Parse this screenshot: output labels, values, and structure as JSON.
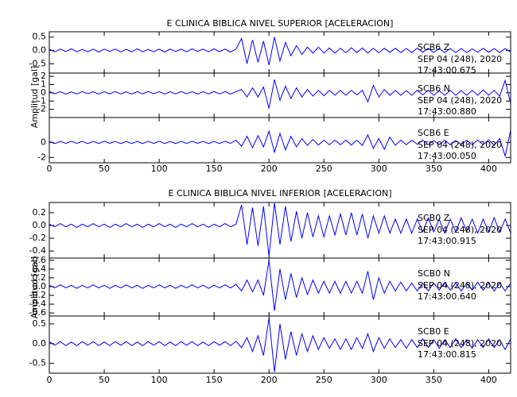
{
  "chart_data": [
    {
      "type": "line",
      "title": "E CLINICA BIBLICA NIVEL SUPERIOR [ACELERACION]",
      "y_label": "Amplitud [gal]",
      "color": "#0000ff",
      "xlim": [
        0,
        420
      ],
      "xticks": [
        0,
        50,
        100,
        150,
        200,
        250,
        300,
        350,
        400
      ],
      "x": [
        0,
        5,
        10,
        15,
        20,
        25,
        30,
        35,
        40,
        45,
        50,
        55,
        60,
        65,
        70,
        75,
        80,
        85,
        90,
        95,
        100,
        105,
        110,
        115,
        120,
        125,
        130,
        135,
        140,
        145,
        150,
        155,
        160,
        165,
        170,
        175,
        180,
        185,
        190,
        195,
        200,
        205,
        210,
        215,
        220,
        225,
        230,
        235,
        240,
        245,
        250,
        255,
        260,
        265,
        270,
        275,
        280,
        285,
        290,
        295,
        300,
        305,
        310,
        315,
        320,
        325,
        330,
        335,
        340,
        345,
        350,
        355,
        360,
        365,
        370,
        375,
        380,
        385,
        390,
        395,
        400,
        405,
        410,
        415,
        420
      ],
      "series": [
        {
          "name": "SCB6 Z",
          "date": "SEP 04 (248), 2020",
          "time": "17:43:00.675",
          "ylim": [
            -0.85,
            0.7
          ],
          "yticks": [
            0.5,
            {
              "value": 0,
              "label": "0.0"
            },
            -0.5
          ],
          "values": [
            0.04,
            -0.05,
            0.05,
            -0.04,
            0.06,
            -0.05,
            0.04,
            -0.05,
            0.05,
            -0.06,
            0.05,
            -0.04,
            0.05,
            -0.06,
            0.04,
            -0.05,
            0.06,
            -0.05,
            0.04,
            -0.05,
            0.05,
            -0.06,
            0.05,
            -0.04,
            0.05,
            -0.05,
            0.06,
            -0.04,
            0.05,
            -0.05,
            0.06,
            -0.05,
            0.05,
            -0.06,
            0.05,
            0.45,
            -0.5,
            0.4,
            -0.45,
            0.35,
            -0.55,
            0.5,
            -0.4,
            0.3,
            -0.2,
            0.18,
            -0.15,
            0.12,
            -0.1,
            0.12,
            -0.1,
            0.09,
            -0.1,
            0.08,
            -0.09,
            0.1,
            -0.08,
            0.09,
            -0.1,
            0.08,
            -0.09,
            0.08,
            -0.07,
            0.08,
            -0.08,
            0.07,
            -0.08,
            0.09,
            -0.07,
            0.08,
            -0.08,
            0.07,
            -0.08,
            0.07,
            -0.08,
            0.07,
            -0.08,
            0.06,
            -0.07,
            0.08,
            -0.07,
            0.07,
            -0.08,
            0.07,
            -0.06
          ]
        },
        {
          "name": "SCB6 N",
          "date": "SEP 04 (248), 2020",
          "time": "17:43:00.880",
          "ylim": [
            -3,
            2.4
          ],
          "yticks": [
            2,
            1,
            0,
            -1,
            -2
          ],
          "values": [
            0.15,
            -0.12,
            0.14,
            -0.15,
            0.12,
            -0.14,
            0.15,
            -0.12,
            0.13,
            -0.15,
            0.14,
            -0.13,
            0.15,
            -0.14,
            0.12,
            -0.15,
            0.14,
            -0.13,
            0.15,
            -0.12,
            0.14,
            -0.15,
            0.13,
            -0.14,
            0.15,
            -0.12,
            0.14,
            -0.15,
            0.13,
            -0.14,
            0.15,
            -0.13,
            0.14,
            -0.15,
            0.14,
            0.4,
            -0.5,
            0.6,
            -0.5,
            0.7,
            -1.9,
            1.6,
            -0.9,
            0.8,
            -0.7,
            0.6,
            -0.5,
            0.4,
            -0.4,
            0.3,
            -0.35,
            0.3,
            -0.3,
            0.3,
            -0.3,
            0.3,
            -0.25,
            0.3,
            -1.1,
            0.9,
            -0.5,
            0.4,
            -0.3,
            0.3,
            -0.3,
            0.25,
            -0.3,
            0.3,
            -0.25,
            0.3,
            -0.3,
            0.25,
            -0.3,
            0.3,
            -0.3,
            0.25,
            -0.3,
            0.3,
            -0.3,
            0.35,
            -0.3,
            0.3,
            -0.4,
            1.5,
            -1.3
          ]
        },
        {
          "name": "SCB6 E",
          "date": "SEP 04 (248), 2020",
          "time": "17:43:00.050",
          "ylim": [
            -2.7,
            3.3
          ],
          "yticks": [
            0,
            -2
          ],
          "values": [
            0.12,
            -0.15,
            0.14,
            -0.13,
            0.15,
            -0.12,
            0.14,
            -0.15,
            0.13,
            -0.14,
            0.15,
            -0.12,
            0.14,
            -0.15,
            0.13,
            -0.14,
            0.12,
            -0.15,
            0.14,
            -0.13,
            0.15,
            -0.14,
            0.12,
            -0.15,
            0.14,
            -0.13,
            0.15,
            -0.12,
            0.14,
            -0.15,
            0.13,
            -0.14,
            0.15,
            -0.12,
            0.3,
            -0.5,
            0.8,
            -0.7,
            0.9,
            -0.6,
            1.5,
            -1.3,
            1.2,
            -1.0,
            0.8,
            -0.6,
            0.5,
            -0.4,
            0.4,
            -0.35,
            0.3,
            -0.3,
            0.3,
            -0.3,
            0.3,
            -0.35,
            0.3,
            -0.4,
            1.0,
            -0.8,
            0.5,
            -0.9,
            0.7,
            -0.4,
            0.3,
            -0.3,
            0.3,
            -0.25,
            0.3,
            -0.3,
            0.25,
            -0.3,
            0.3,
            -0.3,
            0.25,
            -0.3,
            0.3,
            -0.3,
            0.3,
            -0.3,
            0.35,
            -0.4,
            0.5,
            -1.8,
            1.6
          ]
        }
      ]
    },
    {
      "type": "line",
      "title": "E CLINICA BIBLICA NIVEL INFERIOR [ACELERACION]",
      "y_label": "Amplitud [gal]",
      "color": "#0000ff",
      "xlim": [
        0,
        420
      ],
      "xticks": [
        0,
        50,
        100,
        150,
        200,
        250,
        300,
        350,
        400
      ],
      "x": [
        0,
        5,
        10,
        15,
        20,
        25,
        30,
        35,
        40,
        45,
        50,
        55,
        60,
        65,
        70,
        75,
        80,
        85,
        90,
        95,
        100,
        105,
        110,
        115,
        120,
        125,
        130,
        135,
        140,
        145,
        150,
        155,
        160,
        165,
        170,
        175,
        180,
        185,
        190,
        195,
        200,
        205,
        210,
        215,
        220,
        225,
        230,
        235,
        240,
        245,
        250,
        255,
        260,
        265,
        270,
        275,
        280,
        285,
        290,
        295,
        300,
        305,
        310,
        315,
        320,
        325,
        330,
        335,
        340,
        345,
        350,
        355,
        360,
        365,
        370,
        375,
        380,
        385,
        390,
        395,
        400,
        405,
        410,
        415,
        420
      ],
      "series": [
        {
          "name": "SCB0 Z",
          "date": "SEP 04 (248), 2020",
          "time": "17:43:00.915",
          "ylim": [
            -0.51,
            0.36
          ],
          "yticks": [
            0.2,
            {
              "value": 0,
              "label": "0.0"
            },
            -0.2,
            -0.4
          ],
          "values": [
            0.02,
            -0.02,
            0.03,
            -0.02,
            0.02,
            -0.03,
            0.02,
            -0.02,
            0.03,
            -0.02,
            0.02,
            -0.03,
            0.02,
            -0.02,
            0.03,
            -0.02,
            0.02,
            -0.03,
            0.02,
            -0.02,
            0.03,
            -0.02,
            0.02,
            -0.03,
            0.02,
            -0.02,
            0.03,
            -0.02,
            0.02,
            -0.03,
            0.02,
            -0.02,
            0.03,
            -0.02,
            0.02,
            0.32,
            -0.3,
            0.28,
            -0.32,
            0.3,
            -0.48,
            0.35,
            -0.3,
            0.3,
            -0.25,
            0.22,
            -0.2,
            0.2,
            -0.18,
            0.15,
            -0.18,
            0.15,
            -0.15,
            0.18,
            -0.15,
            0.2,
            -0.15,
            0.18,
            -0.2,
            0.15,
            -0.12,
            0.15,
            -0.12,
            0.1,
            -0.12,
            0.1,
            -0.12,
            0.1,
            -0.1,
            0.12,
            -0.1,
            0.1,
            -0.12,
            0.1,
            -0.1,
            0.12,
            -0.1,
            0.1,
            -0.12,
            0.1,
            -0.1,
            0.12,
            -0.1,
            0.1,
            -0.12
          ]
        },
        {
          "name": "SCB0 N",
          "date": "SEP 04 (248), 2020",
          "time": "17:43:00.640",
          "ylim": [
            -0.67,
            0.65
          ],
          "yticks": [
            0.6,
            0.4,
            0.2,
            {
              "value": 0,
              "label": "0.0"
            },
            -0.2,
            -0.4,
            -0.6
          ],
          "values": [
            0.03,
            -0.03,
            0.04,
            -0.03,
            0.03,
            -0.04,
            0.03,
            -0.03,
            0.04,
            -0.03,
            0.03,
            -0.04,
            0.03,
            -0.03,
            0.04,
            -0.03,
            0.03,
            -0.04,
            0.03,
            -0.03,
            0.04,
            -0.03,
            0.03,
            -0.04,
            0.03,
            -0.03,
            0.04,
            -0.03,
            0.03,
            -0.04,
            0.03,
            -0.03,
            0.04,
            -0.03,
            0.05,
            -0.1,
            0.15,
            -0.12,
            0.15,
            -0.2,
            0.6,
            -0.55,
            0.4,
            -0.3,
            0.3,
            -0.25,
            0.2,
            -0.18,
            0.15,
            -0.15,
            0.12,
            -0.15,
            0.12,
            -0.15,
            0.12,
            -0.15,
            0.12,
            -0.15,
            0.35,
            -0.3,
            0.2,
            -0.15,
            0.12,
            -0.1,
            0.1,
            -0.1,
            0.08,
            -0.1,
            0.08,
            -0.1,
            0.08,
            -0.08,
            0.1,
            -0.08,
            0.08,
            -0.1,
            0.08,
            -0.08,
            0.1,
            -0.08,
            0.08,
            -0.1,
            0.08,
            -0.1,
            0.08
          ]
        },
        {
          "name": "SCB0 E",
          "date": "SEP 04 (248), 2020",
          "time": "17:43:00.815",
          "ylim": [
            -0.75,
            0.7
          ],
          "yticks": [
            0.5,
            {
              "value": 0,
              "label": "0.0"
            },
            -0.5
          ],
          "values": [
            0.05,
            -0.04,
            0.05,
            -0.05,
            0.04,
            -0.05,
            0.05,
            -0.04,
            0.05,
            -0.05,
            0.04,
            -0.05,
            0.05,
            -0.04,
            0.05,
            -0.05,
            0.04,
            -0.05,
            0.05,
            -0.04,
            0.05,
            -0.05,
            0.04,
            -0.05,
            0.05,
            -0.04,
            0.05,
            -0.05,
            0.04,
            -0.05,
            0.05,
            -0.04,
            0.05,
            -0.05,
            0.06,
            -0.1,
            0.15,
            -0.2,
            0.2,
            -0.3,
            0.65,
            -0.72,
            0.5,
            -0.4,
            0.3,
            -0.3,
            0.25,
            -0.2,
            0.2,
            -0.15,
            0.15,
            -0.12,
            0.12,
            -0.15,
            0.12,
            -0.15,
            0.15,
            -0.12,
            0.25,
            -0.2,
            0.15,
            -0.12,
            0.12,
            -0.1,
            0.1,
            -0.12,
            0.1,
            -0.1,
            0.12,
            -0.1,
            0.1,
            -0.12,
            0.1,
            -0.1,
            0.12,
            -0.1,
            0.1,
            -0.12,
            0.1,
            -0.1,
            0.12,
            -0.1,
            0.1,
            -0.15,
            0.12
          ]
        }
      ]
    }
  ]
}
